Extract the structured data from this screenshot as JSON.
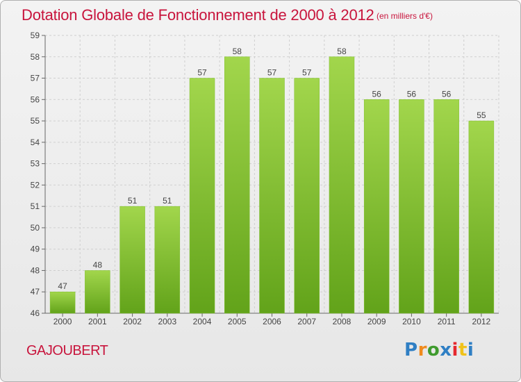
{
  "title": "Dotation Globale de Fonctionnement de 2000 à 2012",
  "unit_note": "(en milliers d'€)",
  "commune": "GAJOUBERT",
  "brand": {
    "letters": [
      "P",
      "r",
      "o",
      "x",
      "i",
      "t",
      "i"
    ],
    "colors": [
      "#2f7fc4",
      "#f08a1c",
      "#3f9b2e",
      "#2f7fc4",
      "#e5282e",
      "#f0c21a",
      "#2f7fc4"
    ]
  },
  "colors": {
    "bar_top": "#a2d64c",
    "bar_bottom": "#62a31a",
    "title": "#c8143c",
    "grid": "#cfcfcf"
  },
  "chart_data": {
    "type": "bar",
    "title": "Dotation Globale de Fonctionnement de 2000 à 2012",
    "subtitle": "(en milliers d'€)",
    "categories": [
      "2000",
      "2001",
      "2002",
      "2003",
      "2004",
      "2005",
      "2006",
      "2007",
      "2008",
      "2009",
      "2010",
      "2011",
      "2012"
    ],
    "values": [
      47,
      48,
      51,
      51,
      57,
      58,
      57,
      57,
      58,
      56,
      56,
      56,
      55
    ],
    "ylim": [
      46,
      59
    ],
    "yticks": [
      46,
      47,
      48,
      49,
      50,
      51,
      52,
      53,
      54,
      55,
      56,
      57,
      58,
      59
    ],
    "grid": true,
    "data_labels": true
  }
}
